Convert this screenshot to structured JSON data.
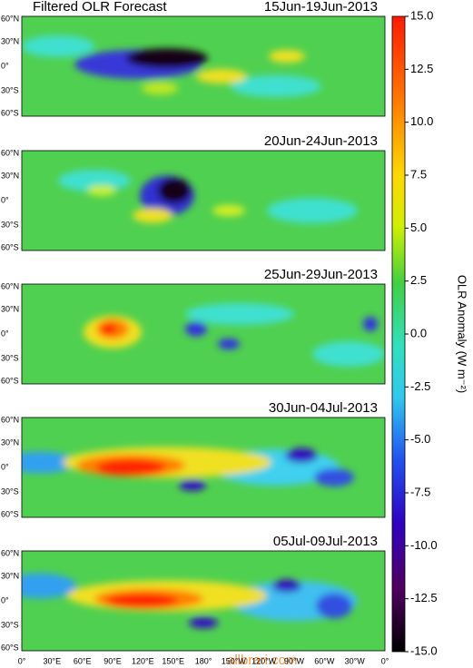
{
  "title": "Filtered OLR  Forecast",
  "panels": [
    {
      "date": "15Jun-19Jun-2013"
    },
    {
      "date": "20Jun-24Jun-2013"
    },
    {
      "date": "25Jun-29Jun-2013"
    },
    {
      "date": "30Jun-04Jul-2013"
    },
    {
      "date": "05Jul-09Jul-2013"
    }
  ],
  "lat_labels": [
    "60°N",
    "30°N",
    "0°",
    "30°S",
    "60°S"
  ],
  "lon_labels": [
    "0°",
    "30°E",
    "60°E",
    "90°E",
    "120°E",
    "150°E",
    "180°",
    "150°W",
    "120°W",
    "90°W",
    "60°W",
    "30°W",
    "0°"
  ],
  "colorbar": {
    "label": "OLR Anomaly (W m⁻²)",
    "lim": [
      -15,
      15
    ],
    "ticks": [
      {
        "value": 15,
        "label": "15.0"
      },
      {
        "value": 12.5,
        "label": "12.5"
      },
      {
        "value": 10,
        "label": "10.0"
      },
      {
        "value": 7.5,
        "label": "7.5"
      },
      {
        "value": 5,
        "label": "5.0"
      },
      {
        "value": 2.5,
        "label": "2.5"
      },
      {
        "value": 0,
        "label": "0.0"
      },
      {
        "value": -2.5,
        "label": "-2.5"
      },
      {
        "value": -5,
        "label": "-5.0"
      },
      {
        "value": -7.5,
        "label": "-7.5"
      },
      {
        "value": -10,
        "label": "-10.0"
      },
      {
        "value": -12.5,
        "label": "-12.5"
      },
      {
        "value": -15,
        "label": "-15.0"
      }
    ]
  },
  "watermark": "allbrari.com"
}
